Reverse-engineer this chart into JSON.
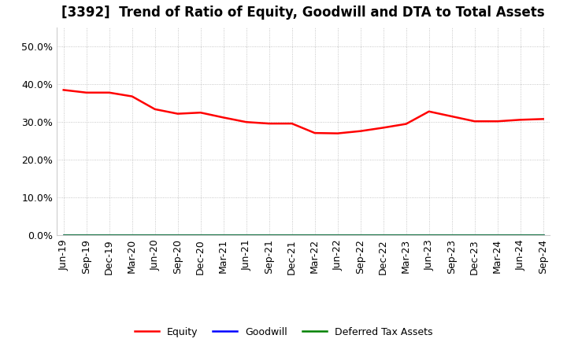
{
  "title": "[3392]  Trend of Ratio of Equity, Goodwill and DTA to Total Assets",
  "labels": [
    "Jun-19",
    "Sep-19",
    "Dec-19",
    "Mar-20",
    "Jun-20",
    "Sep-20",
    "Dec-20",
    "Mar-21",
    "Jun-21",
    "Sep-21",
    "Dec-21",
    "Mar-22",
    "Jun-22",
    "Sep-22",
    "Dec-22",
    "Mar-23",
    "Jun-23",
    "Sep-23",
    "Dec-23",
    "Mar-24",
    "Jun-24",
    "Sep-24"
  ],
  "equity": [
    0.385,
    0.378,
    0.378,
    0.368,
    0.334,
    0.322,
    0.325,
    0.312,
    0.3,
    0.296,
    0.296,
    0.271,
    0.27,
    0.276,
    0.285,
    0.295,
    0.328,
    0.315,
    0.302,
    0.302,
    0.306,
    0.308
  ],
  "goodwill": [
    0.0,
    0.0,
    0.0,
    0.0,
    0.0,
    0.0,
    0.0,
    0.0,
    0.0,
    0.0,
    0.0,
    0.0,
    0.0,
    0.0,
    0.0,
    0.0,
    0.0,
    0.0,
    0.0,
    0.0,
    0.0,
    0.0
  ],
  "dta": [
    0.0,
    0.0,
    0.0,
    0.0,
    0.0,
    0.0,
    0.0,
    0.0,
    0.0,
    0.0,
    0.0,
    0.0,
    0.0,
    0.0,
    0.0,
    0.0,
    0.0,
    0.0,
    0.0,
    0.0,
    0.0,
    0.0
  ],
  "equity_color": "#FF0000",
  "goodwill_color": "#0000FF",
  "dta_color": "#008000",
  "ylim": [
    0.0,
    0.55
  ],
  "yticks": [
    0.0,
    0.1,
    0.2,
    0.3,
    0.4,
    0.5
  ],
  "background_color": "#FFFFFF",
  "plot_bg_color": "#FFFFFF",
  "grid_color": "#999999",
  "title_fontsize": 12,
  "tick_fontsize": 9,
  "legend_labels": [
    "Equity",
    "Goodwill",
    "Deferred Tax Assets"
  ]
}
